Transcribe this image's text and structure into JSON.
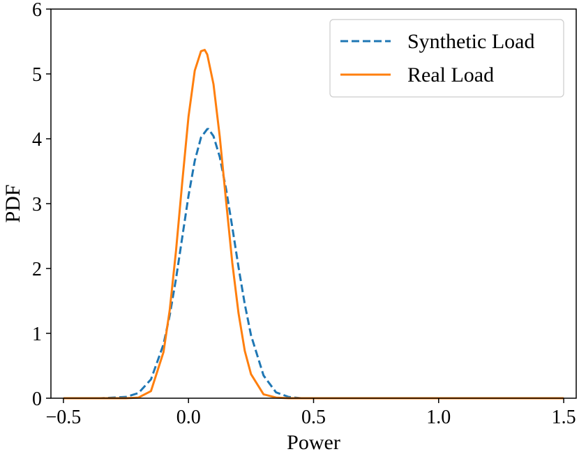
{
  "chart_data": {
    "type": "line",
    "title": "",
    "xlabel": "Power",
    "ylabel": "PDF",
    "xlim": [
      -0.55,
      1.55
    ],
    "ylim": [
      0,
      6
    ],
    "xticks": [
      -0.5,
      0.0,
      0.5,
      1.0,
      1.5
    ],
    "xtick_labels": [
      "−0.5",
      "0.0",
      "0.5",
      "1.0",
      "1.5"
    ],
    "yticks": [
      0,
      1,
      2,
      3,
      4,
      5,
      6
    ],
    "ytick_labels": [
      "0",
      "1",
      "2",
      "3",
      "4",
      "5",
      "6"
    ],
    "grid": false,
    "legend_position": "top-right",
    "series": [
      {
        "name": "Synthetic Load",
        "style": "dashed",
        "color": "#1f77b4",
        "x": [
          -0.5,
          -0.35,
          -0.25,
          -0.2,
          -0.15,
          -0.1,
          -0.075,
          -0.05,
          -0.025,
          0.0,
          0.025,
          0.05,
          0.075,
          0.08,
          0.1,
          0.125,
          0.15,
          0.175,
          0.2,
          0.225,
          0.25,
          0.3,
          0.35,
          0.4,
          0.45,
          0.55,
          1.0,
          1.5
        ],
        "y": [
          0.0,
          0.0,
          0.02,
          0.08,
          0.29,
          0.83,
          1.28,
          1.84,
          2.48,
          3.12,
          3.66,
          4.02,
          4.15,
          4.15,
          4.04,
          3.72,
          3.23,
          2.64,
          2.02,
          1.45,
          0.97,
          0.35,
          0.09,
          0.02,
          0.0,
          0.0,
          0.0,
          0.0
        ]
      },
      {
        "name": "Real Load",
        "style": "solid",
        "color": "#ff7f0e",
        "x": [
          -0.5,
          -0.25,
          -0.2,
          -0.15,
          -0.1,
          -0.075,
          -0.05,
          -0.025,
          0.0,
          0.025,
          0.05,
          0.065,
          0.075,
          0.1,
          0.125,
          0.15,
          0.175,
          0.2,
          0.225,
          0.25,
          0.3,
          0.35,
          0.4,
          0.5,
          1.0,
          1.5
        ],
        "y": [
          0.0,
          0.0,
          0.01,
          0.11,
          0.71,
          1.36,
          2.27,
          3.33,
          4.34,
          5.05,
          5.35,
          5.37,
          5.3,
          4.84,
          4.03,
          3.05,
          2.09,
          1.31,
          0.73,
          0.37,
          0.06,
          0.01,
          0.0,
          0.0,
          0.0,
          0.0
        ]
      }
    ]
  },
  "colors": {
    "axis": "#000000",
    "legend_border": "#cccccc",
    "background": "#ffffff"
  }
}
